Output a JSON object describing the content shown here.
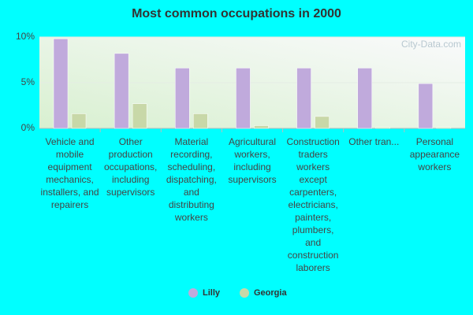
{
  "chart_data": {
    "type": "bar",
    "title": "Most common occupations in 2000",
    "watermark": "City-Data.com",
    "categories": [
      "Vehicle and mobile equipment mechanics, installers, and repairers",
      "Other production occupations, including supervisors",
      "Material recording, scheduling, dispatching, and distributing workers",
      "Agricultural workers, including supervisors",
      "Construction traders workers except carpenters, electricians, painters, plumbers, and construction laborers",
      "Other tran...",
      "Personal appearance workers"
    ],
    "series": [
      {
        "name": "Lilly",
        "color": "#c0aadc",
        "values": [
          9.8,
          8.2,
          6.6,
          6.6,
          6.6,
          6.6,
          4.9
        ]
      },
      {
        "name": "Georgia",
        "color": "#c8d8a8",
        "values": [
          1.6,
          2.7,
          1.6,
          0.3,
          1.3,
          0.1,
          0.1
        ]
      }
    ],
    "ylim": [
      0,
      10
    ],
    "yticks": [
      {
        "value": 0,
        "label": "0%"
      },
      {
        "value": 5,
        "label": "5%"
      },
      {
        "value": 10,
        "label": "10%"
      }
    ],
    "grid": true
  }
}
